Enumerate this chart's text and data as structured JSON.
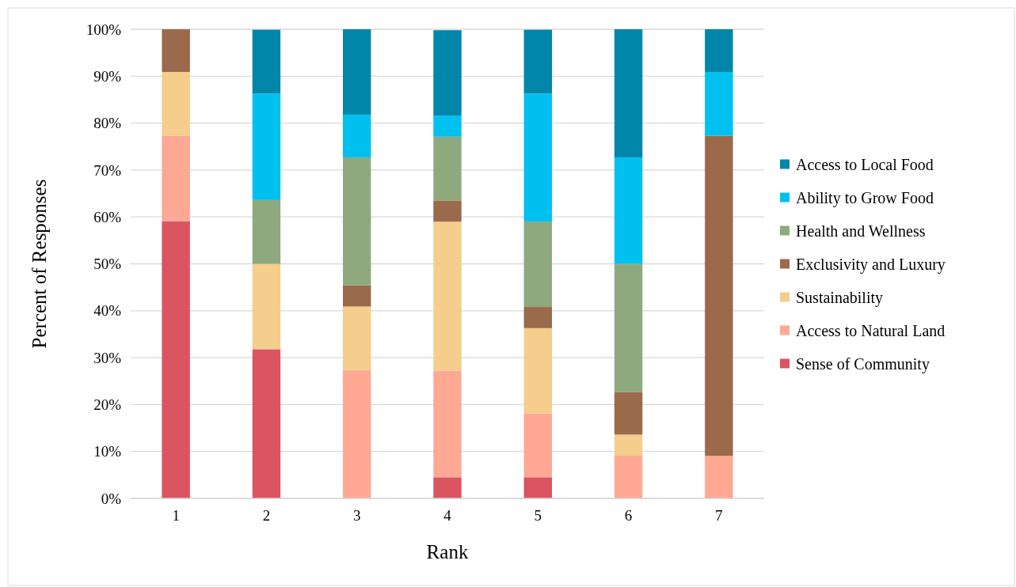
{
  "chart_data": {
    "type": "bar",
    "stacked": true,
    "xlabel": "Rank",
    "ylabel": "Percent of Responses",
    "categories": [
      "1",
      "2",
      "3",
      "4",
      "5",
      "6",
      "7"
    ],
    "series": [
      {
        "name": "Sense of Community",
        "color": "#db5461",
        "values": [
          59.1,
          31.8,
          0,
          4.5,
          4.5,
          0,
          0
        ]
      },
      {
        "name": "Access to Natural Land",
        "color": "#ffa894",
        "values": [
          18.2,
          0,
          27.3,
          22.7,
          13.6,
          9.1,
          9.1
        ]
      },
      {
        "name": "Sustainability",
        "color": "#f5cd8c",
        "values": [
          13.6,
          18.2,
          13.6,
          31.8,
          18.2,
          4.5,
          0
        ]
      },
      {
        "name": "Exclusivity and Luxury",
        "color": "#9b694c",
        "values": [
          9.1,
          0,
          4.5,
          4.5,
          4.5,
          9.1,
          68.2
        ]
      },
      {
        "name": "Health and Wellness",
        "color": "#8fa97f",
        "values": [
          0,
          13.6,
          27.3,
          13.6,
          18.2,
          27.3,
          0
        ]
      },
      {
        "name": "Ability to Grow Food",
        "color": "#00c0ef",
        "values": [
          0,
          22.7,
          9.1,
          4.5,
          27.3,
          22.7,
          13.6
        ]
      },
      {
        "name": "Access to Local Food",
        "color": "#0086a8",
        "values": [
          0,
          13.6,
          18.2,
          18.2,
          13.6,
          27.3,
          9.1
        ]
      }
    ],
    "ylim": [
      0,
      100
    ],
    "yticks": [
      {
        "value": 0,
        "label": "0%"
      },
      {
        "value": 10,
        "label": "10%"
      },
      {
        "value": 20,
        "label": "20%"
      },
      {
        "value": 30,
        "label": "30%"
      },
      {
        "value": 40,
        "label": "40%"
      },
      {
        "value": 50,
        "label": "50%"
      },
      {
        "value": 60,
        "label": "60%"
      },
      {
        "value": 70,
        "label": "70%"
      },
      {
        "value": 80,
        "label": "80%"
      },
      {
        "value": 90,
        "label": "90%"
      },
      {
        "value": 100,
        "label": "100%"
      }
    ],
    "grid": "y",
    "legend": "right"
  }
}
